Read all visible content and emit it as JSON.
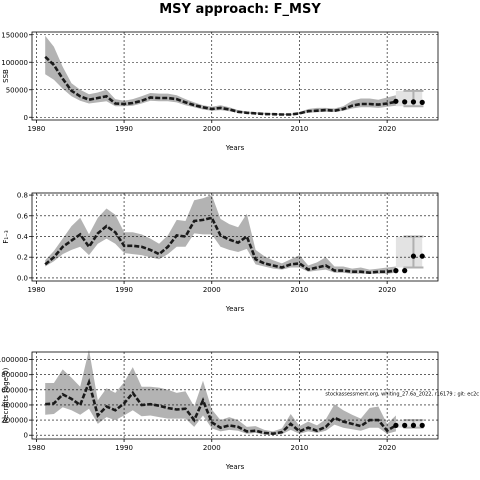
{
  "figure": {
    "title": "MSY approach: F_MSY",
    "colors": {
      "band": "#b3b3b3",
      "line": "#1a1a1a",
      "grid": "#000000",
      "forecast_band": "#cccccc",
      "forecast_bar": "#b0b0b0",
      "points": "#000000"
    }
  },
  "chart_data": [
    {
      "type": "line",
      "title": "",
      "xlabel": "Years",
      "ylabel": "SSB",
      "xlim": [
        1979.5,
        2025.8
      ],
      "ylim": [
        -5000,
        155000
      ],
      "xticks": [
        "1980",
        "1990",
        "2000",
        "2010",
        "2020"
      ],
      "yticks": [
        "0",
        "50000",
        "100000",
        "150000"
      ],
      "grid": true,
      "annotation": "",
      "series": [
        {
          "x": [
            1981,
            1982,
            1983,
            1984,
            1985,
            1986,
            1987,
            1988,
            1989,
            1990,
            1991,
            1992,
            1993,
            1994,
            1995,
            1996,
            1997,
            1998,
            1999,
            2000,
            2001,
            2002,
            2003,
            2004,
            2005,
            2006,
            2007,
            2008,
            2009,
            2010,
            2011,
            2012,
            2013,
            2014,
            2015,
            2016,
            2017,
            2018,
            2019,
            2020,
            2021
          ],
          "y": [
            110000,
            95000,
            70000,
            48000,
            38000,
            32000,
            35000,
            38000,
            25000,
            24000,
            26000,
            30000,
            36000,
            35000,
            35000,
            33000,
            27000,
            22000,
            18000,
            15000,
            17000,
            14000,
            10000,
            8000,
            7000,
            6000,
            5500,
            5000,
            5000,
            7000,
            11000,
            12000,
            13000,
            12000,
            15000,
            21000,
            24000,
            24000,
            23000,
            25000,
            28000
          ],
          "low": [
            78000,
            68000,
            52000,
            38000,
            30000,
            25000,
            27000,
            29000,
            20000,
            20000,
            21000,
            25000,
            30000,
            29000,
            29000,
            27000,
            22000,
            18000,
            14000,
            12000,
            13000,
            11000,
            8000,
            6500,
            5500,
            5000,
            4500,
            4000,
            4000,
            5500,
            8000,
            9000,
            10000,
            9500,
            12000,
            16000,
            18000,
            18000,
            17000,
            19000,
            21000
          ],
          "high": [
            148000,
            128000,
            92000,
            62000,
            50000,
            42000,
            45000,
            50000,
            33000,
            30000,
            33000,
            38000,
            44000,
            43000,
            43000,
            40000,
            33000,
            27000,
            22000,
            19000,
            22000,
            18000,
            13000,
            10500,
            9000,
            8000,
            7000,
            6500,
            6500,
            9500,
            15000,
            17000,
            17000,
            16000,
            20000,
            30000,
            34000,
            34000,
            32000,
            36000,
            40000
          ]
        }
      ],
      "forecast": {
        "x": [
          2021,
          2022,
          2023,
          2024
        ],
        "y": [
          29000,
          28000,
          28000,
          27000
        ],
        "low": 20000,
        "high": 48000
      }
    },
    {
      "type": "line",
      "title": "",
      "xlabel": "Years",
      "ylabel": "F₁₋₃",
      "xlim": [
        1979.5,
        2025.8
      ],
      "ylim": [
        -0.03,
        0.82
      ],
      "xticks": [
        "1980",
        "1990",
        "2000",
        "2010",
        "2020"
      ],
      "yticks": [
        "0.0",
        "0.2",
        "0.4",
        "0.6",
        "0.8"
      ],
      "grid": true,
      "annotation": "",
      "series": [
        {
          "x": [
            1981,
            1982,
            1983,
            1984,
            1985,
            1986,
            1987,
            1988,
            1989,
            1990,
            1991,
            1992,
            1993,
            1994,
            1995,
            1996,
            1997,
            1998,
            1999,
            2000,
            2001,
            2002,
            2003,
            2004,
            2005,
            2006,
            2007,
            2008,
            2009,
            2010,
            2011,
            2012,
            2013,
            2014,
            2015,
            2016,
            2017,
            2018,
            2019,
            2020,
            2021
          ],
          "y": [
            0.13,
            0.2,
            0.3,
            0.36,
            0.42,
            0.3,
            0.43,
            0.5,
            0.44,
            0.31,
            0.31,
            0.3,
            0.27,
            0.23,
            0.3,
            0.41,
            0.4,
            0.55,
            0.56,
            0.58,
            0.41,
            0.37,
            0.34,
            0.4,
            0.18,
            0.14,
            0.12,
            0.1,
            0.13,
            0.14,
            0.08,
            0.1,
            0.12,
            0.07,
            0.07,
            0.06,
            0.06,
            0.05,
            0.06,
            0.06,
            0.07
          ],
          "low": [
            0.11,
            0.16,
            0.23,
            0.27,
            0.3,
            0.22,
            0.33,
            0.38,
            0.33,
            0.24,
            0.23,
            0.22,
            0.2,
            0.18,
            0.23,
            0.3,
            0.3,
            0.43,
            0.42,
            0.42,
            0.3,
            0.27,
            0.25,
            0.28,
            0.13,
            0.11,
            0.09,
            0.08,
            0.1,
            0.1,
            0.06,
            0.07,
            0.08,
            0.05,
            0.05,
            0.04,
            0.04,
            0.04,
            0.04,
            0.04,
            0.05
          ],
          "high": [
            0.17,
            0.26,
            0.38,
            0.5,
            0.58,
            0.42,
            0.58,
            0.67,
            0.61,
            0.44,
            0.44,
            0.42,
            0.38,
            0.33,
            0.41,
            0.56,
            0.55,
            0.75,
            0.77,
            0.8,
            0.57,
            0.52,
            0.49,
            0.62,
            0.27,
            0.21,
            0.17,
            0.14,
            0.18,
            0.22,
            0.12,
            0.15,
            0.2,
            0.11,
            0.11,
            0.09,
            0.1,
            0.08,
            0.09,
            0.1,
            0.11
          ]
        }
      ],
      "forecast": {
        "x": [
          2021,
          2022,
          2023,
          2024
        ],
        "y": [
          0.07,
          0.07,
          0.21,
          0.21
        ],
        "low": 0.1,
        "high": 0.4
      }
    },
    {
      "type": "line",
      "title": "",
      "xlabel": "Years",
      "ylabel": "Recruits (age 0)",
      "xlim": [
        1979.5,
        2025.8
      ],
      "ylim": [
        -50000,
        1100000
      ],
      "xticks": [
        "1980",
        "1990",
        "2000",
        "2010",
        "2020"
      ],
      "yticks": [
        "0",
        "200000",
        "400000",
        "600000",
        "800000",
        "1000000"
      ],
      "grid": true,
      "annotation": "stockassessment.org, whiting_27.6a_2022, r16179 ; git: ec2c",
      "series": [
        {
          "x": [
            1981,
            1982,
            1983,
            1984,
            1985,
            1986,
            1987,
            1988,
            1989,
            1990,
            1991,
            1992,
            1993,
            1994,
            1995,
            1996,
            1997,
            1998,
            1999,
            2000,
            2001,
            2002,
            2003,
            2004,
            2005,
            2006,
            2007,
            2008,
            2009,
            2010,
            2011,
            2012,
            2013,
            2014,
            2015,
            2016,
            2017,
            2018,
            2019,
            2020,
            2021
          ],
          "y": [
            410000,
            420000,
            540000,
            480000,
            400000,
            700000,
            260000,
            380000,
            330000,
            420000,
            560000,
            400000,
            410000,
            390000,
            360000,
            340000,
            350000,
            200000,
            460000,
            170000,
            100000,
            130000,
            110000,
            50000,
            60000,
            30000,
            20000,
            40000,
            150000,
            50000,
            100000,
            60000,
            110000,
            230000,
            180000,
            150000,
            120000,
            200000,
            200000,
            60000,
            130000
          ],
          "low": [
            270000,
            280000,
            370000,
            330000,
            270000,
            350000,
            150000,
            240000,
            200000,
            260000,
            330000,
            250000,
            260000,
            240000,
            220000,
            220000,
            220000,
            110000,
            260000,
            90000,
            50000,
            70000,
            60000,
            20000,
            30000,
            10000,
            5000,
            15000,
            70000,
            20000,
            50000,
            30000,
            60000,
            140000,
            100000,
            80000,
            60000,
            100000,
            100000,
            20000,
            50000
          ],
          "high": [
            690000,
            690000,
            870000,
            760000,
            640000,
            1130000,
            460000,
            620000,
            560000,
            700000,
            900000,
            640000,
            640000,
            630000,
            600000,
            560000,
            580000,
            380000,
            720000,
            340000,
            200000,
            240000,
            200000,
            110000,
            120000,
            70000,
            50000,
            90000,
            280000,
            120000,
            180000,
            130000,
            210000,
            410000,
            330000,
            270000,
            220000,
            360000,
            380000,
            150000,
            260000
          ]
        }
      ],
      "forecast": {
        "x": [
          2021,
          2022,
          2023,
          2024
        ],
        "y": [
          130000,
          130000,
          130000,
          130000
        ],
        "low": 100000,
        "high": 200000
      }
    }
  ]
}
